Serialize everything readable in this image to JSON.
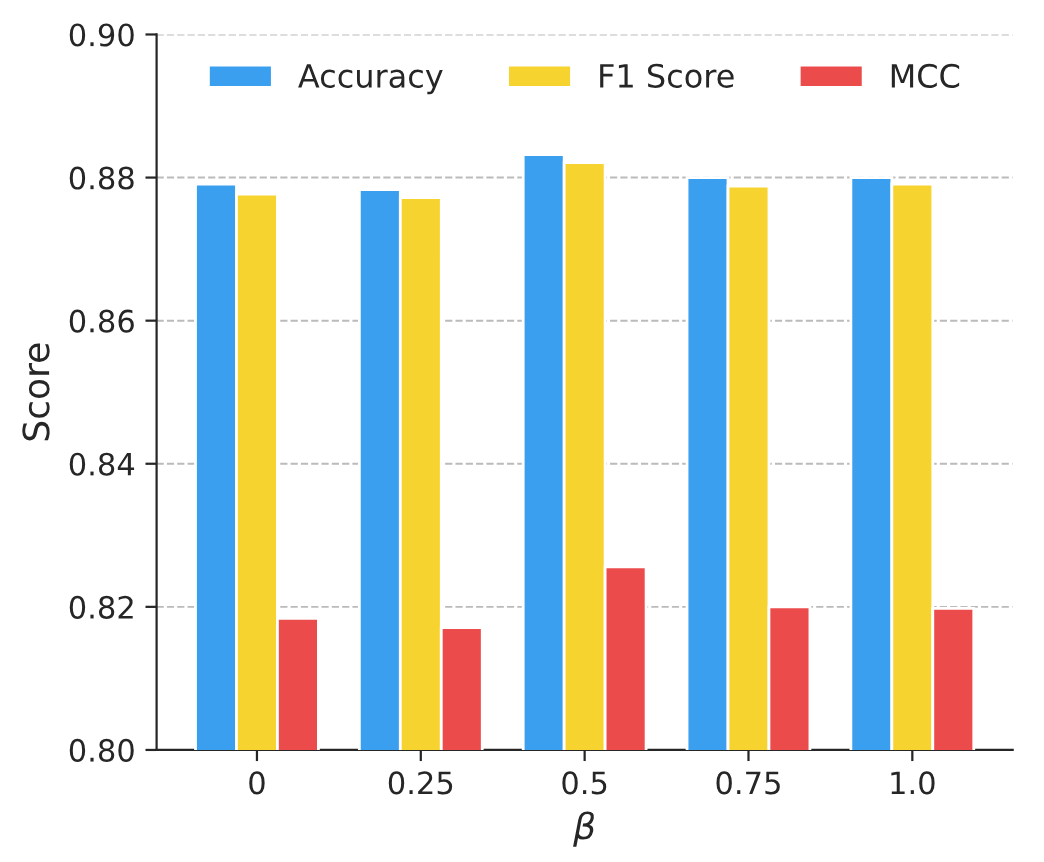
{
  "chart_data": {
    "type": "bar",
    "xlabel": "β",
    "ylabel": "Score",
    "categories": [
      "0",
      "0.25",
      "0.5",
      "0.75",
      "1.0"
    ],
    "series": [
      {
        "name": "Accuracy",
        "color": "#3b9ff0",
        "values": [
          0.8791,
          0.8783,
          0.8832,
          0.88,
          0.88
        ]
      },
      {
        "name": "F1 Score",
        "color": "#f7d330",
        "values": [
          0.8777,
          0.8772,
          0.8821,
          0.8788,
          0.8791
        ]
      },
      {
        "name": "MCC",
        "color": "#eb4b4b",
        "values": [
          0.8184,
          0.8171,
          0.8256,
          0.82,
          0.8198
        ]
      }
    ],
    "ylim": [
      0.8,
      0.9
    ],
    "yticks": [
      {
        "value": 0.8,
        "label": "0.80"
      },
      {
        "value": 0.82,
        "label": "0.82"
      },
      {
        "value": 0.84,
        "label": "0.84"
      },
      {
        "value": 0.86,
        "label": "0.86"
      },
      {
        "value": 0.88,
        "label": "0.88"
      },
      {
        "value": 0.9,
        "label": "0.90"
      }
    ],
    "grid": "y",
    "legend": "top"
  }
}
